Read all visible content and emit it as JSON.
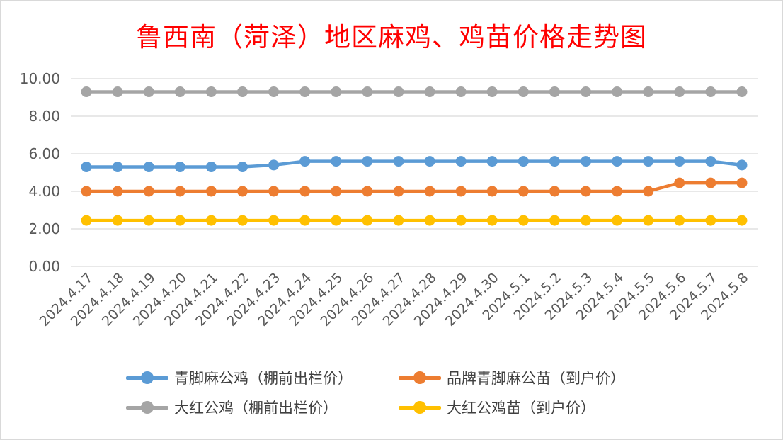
{
  "title": "鲁西南（菏泽）地区麻鸡、鸡苗价格走势图",
  "chart_data": {
    "type": "line",
    "title": "鲁西南（菏泽）地区麻鸡、鸡苗价格走势图",
    "xlabel": "",
    "ylabel": "",
    "ylim": [
      0,
      10
    ],
    "yticks": [
      "0.00",
      "2.00",
      "4.00",
      "6.00",
      "8.00",
      "10.00"
    ],
    "grid": true,
    "legend_position": "bottom",
    "categories": [
      "2024.4.17",
      "2024.4.18",
      "2024.4.19",
      "2024.4.20",
      "2024.4.21",
      "2024.4.22",
      "2024.4.23",
      "2024.4.24",
      "2024.4.25",
      "2024.4.26",
      "2024.4.27",
      "2024.4.28",
      "2024.4.29",
      "2024.4.30",
      "2024.5.1",
      "2024.5.2",
      "2024.5.3",
      "2024.5.4",
      "2024.5.5",
      "2024.5.6",
      "2024.5.7",
      "2024.5.8"
    ],
    "series": [
      {
        "name": "青脚麻公鸡（棚前出栏价）",
        "color": "#5b9bd5",
        "values": [
          5.3,
          5.3,
          5.3,
          5.3,
          5.3,
          5.3,
          5.4,
          5.6,
          5.6,
          5.6,
          5.6,
          5.6,
          5.6,
          5.6,
          5.6,
          5.6,
          5.6,
          5.6,
          5.6,
          5.6,
          5.6,
          5.4
        ]
      },
      {
        "name": "品牌青脚麻公苗（到户价）",
        "color": "#ed7d31",
        "values": [
          4.0,
          4.0,
          4.0,
          4.0,
          4.0,
          4.0,
          4.0,
          4.0,
          4.0,
          4.0,
          4.0,
          4.0,
          4.0,
          4.0,
          4.0,
          4.0,
          4.0,
          4.0,
          4.0,
          4.45,
          4.45,
          4.45
        ]
      },
      {
        "name": "大红公鸡（棚前出栏价）",
        "color": "#a5a5a5",
        "values": [
          9.3,
          9.3,
          9.3,
          9.3,
          9.3,
          9.3,
          9.3,
          9.3,
          9.3,
          9.3,
          9.3,
          9.3,
          9.3,
          9.3,
          9.3,
          9.3,
          9.3,
          9.3,
          9.3,
          9.3,
          9.3,
          9.3
        ]
      },
      {
        "name": "大红公鸡苗（到户价）",
        "color": "#ffc000",
        "values": [
          2.45,
          2.45,
          2.45,
          2.45,
          2.45,
          2.45,
          2.45,
          2.45,
          2.45,
          2.45,
          2.45,
          2.45,
          2.45,
          2.45,
          2.45,
          2.45,
          2.45,
          2.45,
          2.45,
          2.45,
          2.45,
          2.45
        ]
      }
    ]
  },
  "legend": {
    "items": [
      {
        "label": "青脚麻公鸡（棚前出栏价）",
        "color": "#5b9bd5"
      },
      {
        "label": "品牌青脚麻公苗（到户价）",
        "color": "#ed7d31"
      },
      {
        "label": "大红公鸡（棚前出栏价）",
        "color": "#a5a5a5"
      },
      {
        "label": "大红公鸡苗（到户价）",
        "color": "#ffc000"
      }
    ]
  }
}
